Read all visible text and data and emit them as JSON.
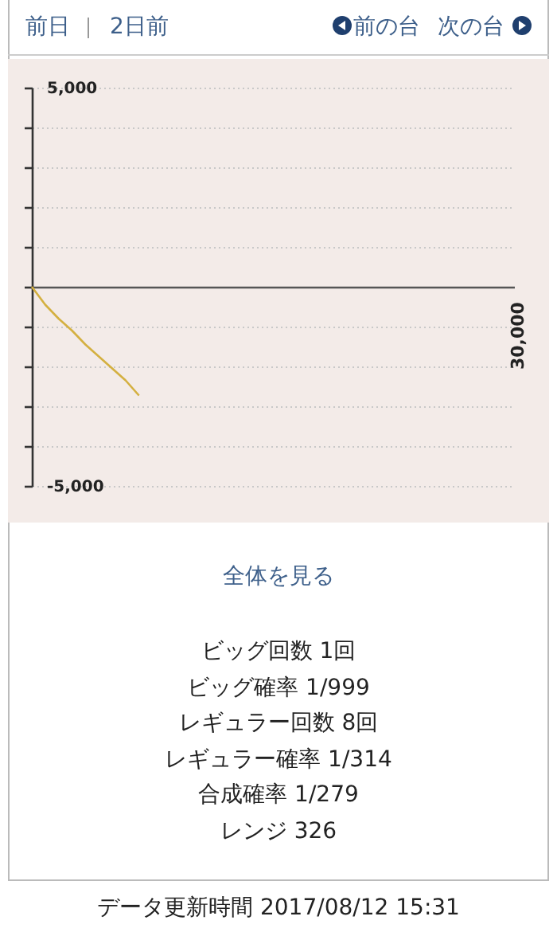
{
  "chart_data": {
    "type": "line",
    "categories": [
      null,
      null,
      null,
      null,
      null,
      null,
      null,
      null,
      null,
      null,
      null,
      null,
      null,
      null,
      null,
      null,
      null,
      null,
      null,
      null,
      null,
      null,
      null,
      null,
      null,
      null,
      null,
      null,
      null,
      null,
      null,
      null,
      null,
      null,
      null,
      null,
      null
    ],
    "series": [
      {
        "color": "#d4b040",
        "values": [
          0,
          -450,
          -800,
          -1100,
          -1450,
          -1750,
          -2050,
          -2350,
          -2730,
          null,
          null,
          null,
          null,
          null,
          null,
          null,
          null,
          null,
          null,
          null,
          null,
          null,
          null,
          null,
          null,
          null,
          null,
          null,
          null,
          null,
          null,
          null,
          null,
          null,
          null,
          null,
          null
        ]
      }
    ],
    "ylim": [
      -5000,
      5000
    ],
    "yticks": [
      {
        "value": -5000,
        "label": "-5,000"
      },
      {
        "value": -4000,
        "label": null
      },
      {
        "value": -3000,
        "label": null
      },
      {
        "value": -2000,
        "label": null
      },
      {
        "value": -1000,
        "label": null
      },
      {
        "value": 0,
        "label": null
      },
      {
        "value": 1000,
        "label": null
      },
      {
        "value": 2000,
        "label": null
      },
      {
        "value": 3000,
        "label": null
      },
      {
        "value": 4000,
        "label": null
      },
      {
        "value": 5000,
        "label": "5,000"
      }
    ],
    "grid": "y",
    "marker": "none",
    "line_style": "solid",
    "annotations": [
      "前日",
      "2日前",
      "前の台",
      "次の台",
      "全体を見る",
      "ビッグ回数 1回",
      "ビッグ確率 1/999",
      "レギュラー回数 8回",
      "レギュラー確率 1/314",
      "合成確率 1/279",
      "レンジ 326",
      "データ更新時間 2017/08/12 15:31",
      "30,000"
    ]
  }
}
